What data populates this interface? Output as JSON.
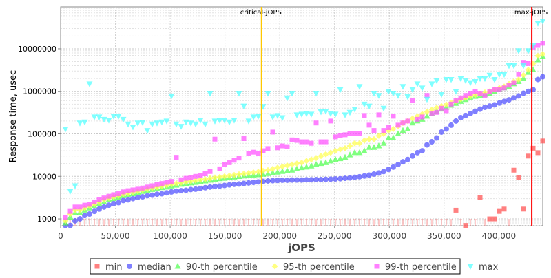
{
  "chart_data": {
    "type": "scatter",
    "xlabel": "jOPS",
    "ylabel": "Response time, usec",
    "xlim": [
      0,
      440000
    ],
    "ylim": [
      690,
      97000000
    ],
    "y_scale": "log",
    "grid": true,
    "legend_placement": "bottom",
    "x_ticks": [
      "0",
      "50,000",
      "100,000",
      "150,000",
      "200,000",
      "250,000",
      "300,000",
      "350,000",
      "400,000"
    ],
    "x_tick_values": [
      0,
      50000,
      100000,
      150000,
      200000,
      250000,
      300000,
      350000,
      400000
    ],
    "y_ticks": [
      "1000",
      "10000",
      "100000",
      "1000000",
      "10000000"
    ],
    "y_tick_values": [
      1000,
      10000,
      100000,
      1000000,
      10000000
    ],
    "markers": [
      {
        "label": "critical-jOPS",
        "x": 183400,
        "color": "#ffc800"
      },
      {
        "label": "max-jOPS",
        "x": 430000,
        "color": "#ff0000"
      }
    ],
    "x_step": 4400,
    "x_count": 100,
    "series": [
      {
        "name": "min",
        "color": "#ff5555",
        "shape": "square",
        "values": [
          500,
          500,
          500,
          500,
          500,
          500,
          500,
          500,
          500,
          500,
          500,
          500,
          500,
          500,
          500,
          500,
          500,
          500,
          500,
          500,
          500,
          500,
          500,
          500,
          500,
          500,
          500,
          500,
          500,
          500,
          500,
          500,
          500,
          500,
          500,
          500,
          500,
          500,
          500,
          500,
          500,
          500,
          500,
          500,
          500,
          500,
          500,
          500,
          500,
          500,
          500,
          500,
          500,
          500,
          500,
          500,
          500,
          500,
          500,
          500,
          500,
          500,
          500,
          500,
          500,
          500,
          500,
          500,
          500,
          500,
          500,
          500,
          500,
          500,
          500,
          500,
          500,
          500,
          500,
          500,
          500,
          1600,
          500,
          700,
          500,
          500,
          3200,
          500,
          1000,
          1000,
          1500,
          1700,
          500,
          14000,
          9500,
          1700,
          30000,
          46000,
          36000,
          68000
        ]
      },
      {
        "name": "median",
        "color": "#5555ff",
        "shape": "circle",
        "values": [
          700,
          700,
          900,
          1000,
          1200,
          1300,
          1500,
          1700,
          1900,
          2100,
          2300,
          2400,
          2700,
          2800,
          3000,
          3200,
          3300,
          3500,
          3600,
          3800,
          3900,
          4100,
          4300,
          4500,
          4600,
          4700,
          4900,
          5000,
          5200,
          5400,
          5600,
          5800,
          5900,
          6100,
          6300,
          6500,
          6600,
          6800,
          7000,
          7200,
          7400,
          7600,
          7800,
          7900,
          8000,
          8100,
          8100,
          8200,
          8200,
          8200,
          8300,
          8300,
          8400,
          8400,
          8500,
          8600,
          8700,
          8800,
          9000,
          9200,
          9500,
          9800,
          10200,
          10700,
          11300,
          12000,
          13000,
          14500,
          16500,
          19000,
          22000,
          25000,
          30000,
          36000,
          40000,
          55000,
          65000,
          80000,
          110000,
          130000,
          160000,
          200000,
          240000,
          270000,
          300000,
          340000,
          380000,
          420000,
          450000,
          480000,
          530000,
          580000,
          630000,
          700000,
          780000,
          900000,
          1000000,
          1100000,
          1900000,
          2200000
        ]
      },
      {
        "name": "90-th percentile",
        "color": "#55ff55",
        "shape": "triangle",
        "values": [
          800,
          1100,
          1400,
          1400,
          1600,
          1800,
          2000,
          2300,
          2500,
          2800,
          3000,
          3200,
          3500,
          3700,
          3900,
          4200,
          4400,
          4700,
          4900,
          5100,
          5400,
          5600,
          5900,
          6200,
          6500,
          6800,
          7000,
          7200,
          7500,
          7800,
          8100,
          8500,
          8800,
          9000,
          9300,
          9600,
          9900,
          10200,
          10500,
          10700,
          10900,
          11200,
          11600,
          12000,
          12500,
          13000,
          13500,
          14000,
          15000,
          16000,
          16500,
          17500,
          19000,
          20000,
          21000,
          23000,
          25000,
          26000,
          28000,
          32000,
          36000,
          36000,
          40000,
          48000,
          48000,
          52000,
          60000,
          80000,
          80000,
          100000,
          120000,
          130000,
          180000,
          200000,
          220000,
          260000,
          300000,
          340000,
          380000,
          420000,
          470000,
          520000,
          580000,
          640000,
          700000,
          760000,
          800000,
          850000,
          900000,
          1000000,
          1100000,
          1200000,
          1300000,
          1500000,
          1700000,
          2000000,
          2800000,
          3200000,
          5500000,
          6500000
        ]
      },
      {
        "name": "95-th percentile",
        "color": "#ffff55",
        "shape": "diamond",
        "values": [
          900,
          1300,
          1600,
          1600,
          1800,
          2000,
          2200,
          2500,
          2800,
          3100,
          3300,
          3500,
          3800,
          4000,
          4200,
          4500,
          4800,
          5000,
          5300,
          5600,
          5900,
          6200,
          6500,
          6800,
          7100,
          7400,
          7700,
          8000,
          8300,
          8600,
          9000,
          9400,
          9700,
          10000,
          10400,
          10800,
          11200,
          11600,
          12000,
          12400,
          12800,
          13500,
          14000,
          15000,
          16000,
          17000,
          18000,
          19000,
          20000,
          21000,
          23000,
          25000,
          27000,
          30000,
          33000,
          36000,
          40000,
          43000,
          46000,
          52000,
          60000,
          60000,
          70000,
          75000,
          75000,
          90000,
          100000,
          120000,
          130000,
          150000,
          180000,
          200000,
          230000,
          260000,
          290000,
          330000,
          370000,
          410000,
          450000,
          490000,
          540000,
          590000,
          650000,
          700000,
          760000,
          820000,
          880000,
          940000,
          1000000,
          1100000,
          1200000,
          1300000,
          1500000,
          1700000,
          1900000,
          2400000,
          3200000,
          4500000,
          6800000,
          7500000
        ]
      },
      {
        "name": "99-th percentile",
        "color": "#ff55ff",
        "shape": "square",
        "values": [
          1100,
          1500,
          1900,
          1900,
          2100,
          2200,
          2500,
          2800,
          3100,
          3400,
          3700,
          3900,
          4300,
          4600,
          4800,
          5000,
          5300,
          5600,
          6000,
          6400,
          6800,
          7200,
          7600,
          28000,
          8300,
          9000,
          9500,
          10000,
          10500,
          11500,
          13000,
          75000,
          15000,
          19000,
          21000,
          24000,
          27000,
          77000,
          35000,
          37000,
          35000,
          40000,
          45000,
          110000,
          47000,
          52000,
          50000,
          72000,
          70000,
          65000,
          65000,
          60000,
          180000,
          65000,
          65000,
          200000,
          85000,
          90000,
          95000,
          100000,
          100000,
          100000,
          270000,
          160000,
          120000,
          280000,
          120000,
          140000,
          260000,
          160000,
          180000,
          200000,
          600000,
          220000,
          250000,
          800000,
          300000,
          320000,
          400000,
          350000,
          500000,
          600000,
          700000,
          800000,
          900000,
          1000000,
          900000,
          800000,
          1000000,
          1100000,
          1100000,
          1200000,
          1400000,
          1600000,
          2500000,
          4800000,
          4500000,
          11000000,
          12000000,
          13500000
        ]
      },
      {
        "name": "max",
        "color": "#55ffff",
        "shape": "triangle-down",
        "values": [
          130000,
          4500,
          6000,
          180000,
          190000,
          1500000,
          250000,
          250000,
          220000,
          210000,
          260000,
          260000,
          220000,
          170000,
          145000,
          180000,
          185000,
          120000,
          170000,
          180000,
          190000,
          200000,
          780000,
          170000,
          150000,
          190000,
          180000,
          170000,
          210000,
          170000,
          900000,
          200000,
          210000,
          210000,
          190000,
          210000,
          900000,
          450000,
          200000,
          250000,
          260000,
          440000,
          900000,
          250000,
          270000,
          240000,
          700000,
          900000,
          280000,
          290000,
          300000,
          290000,
          900000,
          330000,
          340000,
          300000,
          290000,
          1100000,
          280000,
          320000,
          380000,
          1300000,
          500000,
          450000,
          900000,
          800000,
          400000,
          1000000,
          900000,
          800000,
          1300000,
          750000,
          1100000,
          1500000,
          1200000,
          650000,
          1500000,
          1800000,
          850000,
          1900000,
          1900000,
          1000000,
          2000000,
          1800000,
          1600000,
          1700000,
          2000000,
          2000000,
          2400000,
          1900000,
          2500000,
          2500000,
          4000000,
          4000000,
          9000000,
          4000000,
          9000000,
          12000000,
          40000000,
          45000000
        ]
      }
    ]
  }
}
